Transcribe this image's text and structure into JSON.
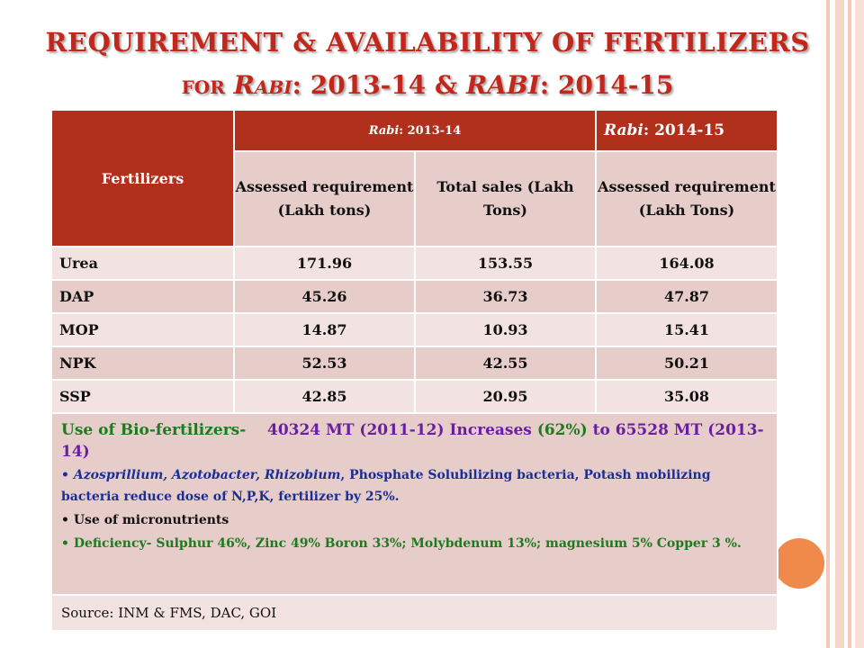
{
  "slide": {
    "title_line1": "REQUIREMENT & AVAILABILITY OF FERTILIZERS",
    "title_line2_for": "FOR",
    "title_line2_r": "R",
    "title_line2_abi": "ABI",
    "title_line2_rest": ": 2013-14 & ",
    "title_line2_rabi": "RABI",
    "title_line2_end": ": 2014-15"
  },
  "table": {
    "col_fertilizers": "Fertilizers",
    "rabi_2013_label": "Rabi",
    "rabi_2013_year": ": 2013-14",
    "rabi_2014_label": "Rabi",
    "rabi_2014_year": ": 2014-15",
    "sub_assessed": "Assessed requirement (Lakh tons)",
    "sub_total_sales": "Total sales (Lakh Tons)",
    "sub_assessed_2": "Assessed requirement (Lakh Tons)",
    "rows": [
      {
        "name": "Urea",
        "assessed_2013": "171.96",
        "sales_2013": "153.55",
        "assessed_2014": "164.08"
      },
      {
        "name": "DAP",
        "assessed_2013": "45.26",
        "sales_2013": "36.73",
        "assessed_2014": "47.87"
      },
      {
        "name": "MOP",
        "assessed_2013": "14.87",
        "sales_2013": "10.93",
        "assessed_2014": "15.41"
      },
      {
        "name": "NPK",
        "assessed_2013": "52.53",
        "sales_2013": "42.55",
        "assessed_2014": "50.21"
      },
      {
        "name": "SSP",
        "assessed_2013": "42.85",
        "sales_2013": "20.95",
        "assessed_2014": "35.08"
      }
    ]
  },
  "notes": {
    "bio_label": "Use of Bio-fertilizers-",
    "bio_value1": "40324 MT (2011-12)",
    "bio_increases": "Increases",
    "bio_pct": "(62%)",
    "bio_to": "to 65528 MT (2013-14)",
    "bullet1_organisms": "Azosprillium, Azotobacter, Rhizobium",
    "bullet1_rest": ", Phosphate Solubilizing bacteria, Potash mobilizing bacteria reduce dose of N,P,K, fertilizer by 25%.",
    "bullet2": "Use of micronutrients",
    "bullet3": "Deficiency- Sulphur 46%, Zinc 49% Boron 33%; Molybdenum 13%; magnesium 5% Copper 3 %."
  },
  "source": "Source: INM & FMS, DAC, GOI",
  "colors": {
    "accent_red": "#b0301c",
    "title_red": "#c3271b",
    "pink_dark": "#e7cdca",
    "pink_light": "#f2e2e1",
    "circle": "#f08a4b"
  }
}
